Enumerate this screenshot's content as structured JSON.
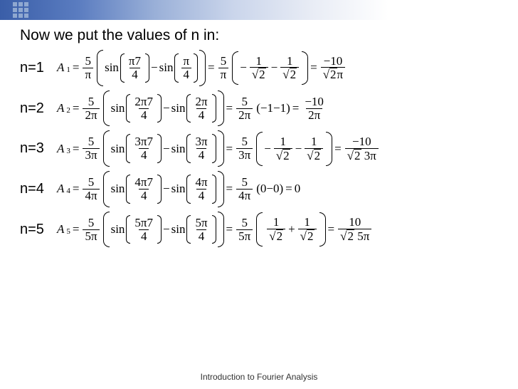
{
  "title": "Now we put the values of n in:",
  "footer": "Introduction to Fourier Analysis",
  "rows": [
    {
      "label": "n=1",
      "A": "A",
      "sub": "1",
      "coef_num": "5",
      "coef_den": "π",
      "arg1_num": "π7",
      "arg1_den": "4",
      "arg2_num": "π",
      "arg2_den": "4",
      "mid_type": "sqrt",
      "v1_sign": "−",
      "v1_num": "1",
      "v1_den": "2",
      "v2_sign": "−",
      "v2_num": "1",
      "v2_den": "2",
      "res_num": "−10",
      "res_den_sqrt": "2",
      "res_den_tail": "π"
    },
    {
      "label": "n=2",
      "A": "A",
      "sub": "2",
      "coef_num": "5",
      "coef_den": "2π",
      "arg1_num": "2π7",
      "arg1_den": "4",
      "arg2_num": "2π",
      "arg2_den": "4",
      "mid_type": "plain",
      "plain_mid": "(−1−1)",
      "res_num": "−10",
      "res_den_tail": "2π"
    },
    {
      "label": "n=3",
      "A": "A",
      "sub": "3",
      "coef_num": "5",
      "coef_den": "3π",
      "arg1_num": "3π7",
      "arg1_den": "4",
      "arg2_num": "3π",
      "arg2_den": "4",
      "mid_type": "sqrt",
      "v1_sign": "−",
      "v1_num": "1",
      "v1_den": "2",
      "v2_sign": "−",
      "v2_num": "1",
      "v2_den": "2",
      "res_num": "−10",
      "res_den_sqrt": "2",
      "res_den_tail": " 3π"
    },
    {
      "label": "n=4",
      "A": "A",
      "sub": "4",
      "coef_num": "5",
      "coef_den": "4π",
      "arg1_num": "4π7",
      "arg1_den": "4",
      "arg2_num": "4π",
      "arg2_den": "4",
      "mid_type": "plain",
      "plain_mid": "(0−0)",
      "res_plain": "0"
    },
    {
      "label": "n=5",
      "A": "A",
      "sub": "5",
      "coef_num": "5",
      "coef_den": "5π",
      "arg1_num": "5π7",
      "arg1_den": "4",
      "arg2_num": "5π",
      "arg2_den": "4",
      "mid_type": "sqrt",
      "v1_sign": "",
      "v1_num": "1",
      "v1_den": "2",
      "v2_sign": "+",
      "v2_num": "1",
      "v2_den": "2",
      "res_num": "10",
      "res_den_sqrt": "2",
      "res_den_tail": " 5π"
    }
  ],
  "sym": {
    "eq": "=",
    "minus": "−",
    "sin": "sin"
  }
}
